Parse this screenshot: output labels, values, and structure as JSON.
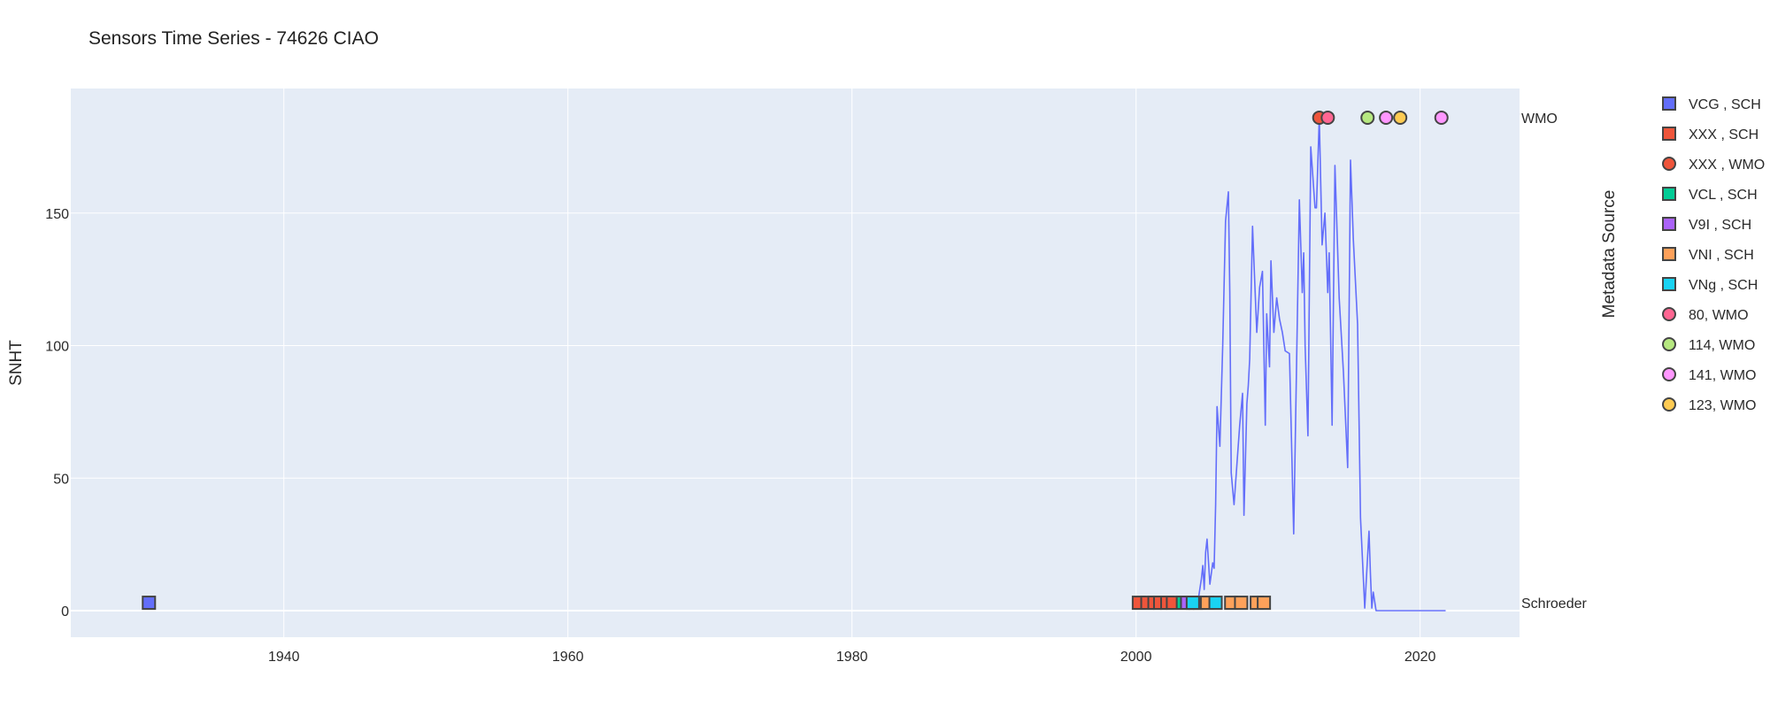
{
  "chart_data": {
    "type": "line",
    "title": "Sensors Time Series - 74626 CIAO",
    "ylabel": "SNHT",
    "xlabel": "",
    "xlim": [
      1925,
      2027
    ],
    "ylim": [
      -10,
      197
    ],
    "xticks": [
      1940,
      1960,
      1980,
      2000,
      2020
    ],
    "yticks": [
      0,
      50,
      100,
      150
    ],
    "grid": true,
    "legend_title": "Metadata Source",
    "legend_position": "right",
    "row_labels": [
      {
        "text": "WMO",
        "y": 186
      },
      {
        "text": "Schroeder",
        "y": 3
      }
    ],
    "snht_series": {
      "color": "#636efa",
      "x": [
        2004.4,
        2004.6,
        2004.7,
        2004.8,
        2004.9,
        2005.0,
        2005.2,
        2005.4,
        2005.5,
        2005.6,
        2005.7,
        2005.9,
        2006.1,
        2006.3,
        2006.5,
        2006.6,
        2006.7,
        2006.9,
        2007.1,
        2007.3,
        2007.5,
        2007.6,
        2007.8,
        2007.9,
        2008.0,
        2008.2,
        2008.4,
        2008.5,
        2008.7,
        2008.9,
        2009.1,
        2009.2,
        2009.4,
        2009.5,
        2009.7,
        2009.9,
        2010.1,
        2010.3,
        2010.5,
        2010.8,
        2011.1,
        2011.5,
        2011.7,
        2011.8,
        2011.9,
        2012.1,
        2012.3,
        2012.6,
        2012.7,
        2012.9,
        2013.1,
        2013.3,
        2013.5,
        2013.6,
        2013.8,
        2014.0,
        2014.3,
        2014.6,
        2014.9,
        2015.1,
        2015.3,
        2015.6,
        2015.8,
        2016.1,
        2016.4,
        2016.5,
        2016.6,
        2016.7,
        2016.9,
        2017.4,
        2018.0,
        2019.0,
        2020.0,
        2021.0,
        2021.8
      ],
      "y": [
        5,
        12,
        17,
        8,
        22,
        27,
        10,
        18,
        16,
        40,
        77,
        62,
        100,
        147,
        158,
        120,
        52,
        40,
        55,
        70,
        82,
        36,
        78,
        85,
        95,
        145,
        118,
        105,
        122,
        128,
        70,
        112,
        92,
        132,
        105,
        118,
        110,
        105,
        98,
        97,
        29,
        155,
        120,
        135,
        100,
        66,
        175,
        152,
        152,
        186,
        138,
        150,
        120,
        135,
        70,
        168,
        118,
        90,
        54,
        170,
        140,
        108,
        35,
        1,
        30,
        14,
        1,
        7,
        0,
        0,
        0,
        0,
        0,
        0,
        0
      ]
    },
    "legend_series": [
      {
        "name": "VCG , SCH",
        "marker": "square",
        "color": "#636efa",
        "row": "Schroeder",
        "x": [
          1930.5
        ]
      },
      {
        "name": "XXX , SCH",
        "marker": "square",
        "color": "#ef553b",
        "row": "Schroeder",
        "x": [
          2000.2,
          2000.8,
          2001.3,
          2001.7,
          2002.2,
          2002.6
        ]
      },
      {
        "name": "XXX , WMO",
        "marker": "circle",
        "color": "#ef553b",
        "row": "WMO",
        "x": [
          2012.9
        ]
      },
      {
        "name": "VCL , SCH",
        "marker": "square",
        "color": "#00cc96",
        "row": "Schroeder",
        "x": [
          2003.3,
          2004.2
        ]
      },
      {
        "name": "V9I , SCH",
        "marker": "square",
        "color": "#ab63fa",
        "row": "Schroeder",
        "x": [
          2003.6,
          2004.5
        ]
      },
      {
        "name": "VNI , SCH",
        "marker": "square",
        "color": "#ffa15a",
        "row": "Schroeder",
        "x": [
          2005.0,
          2006.7,
          2007.4,
          2008.5,
          2009.0
        ]
      },
      {
        "name": "VNg , SCH",
        "marker": "square",
        "color": "#19d3f3",
        "row": "Schroeder",
        "x": [
          2004.0,
          2005.6
        ]
      },
      {
        "name": "80, WMO",
        "marker": "circle",
        "color": "#ff6692",
        "row": "WMO",
        "x": [
          2013.5
        ]
      },
      {
        "name": "114, WMO",
        "marker": "circle",
        "color": "#b6e880",
        "row": "WMO",
        "x": [
          2016.3
        ]
      },
      {
        "name": "141, WMO",
        "marker": "circle",
        "color": "#ff97ff",
        "row": "WMO",
        "x": [
          2017.6,
          2021.5
        ]
      },
      {
        "name": "123, WMO",
        "marker": "circle",
        "color": "#fecb52",
        "row": "WMO",
        "x": [
          2018.6
        ]
      }
    ],
    "colors": {
      "plot_bg": "#e5ecf6",
      "grid": "#ffffff",
      "marker_outline": "#444444"
    }
  }
}
